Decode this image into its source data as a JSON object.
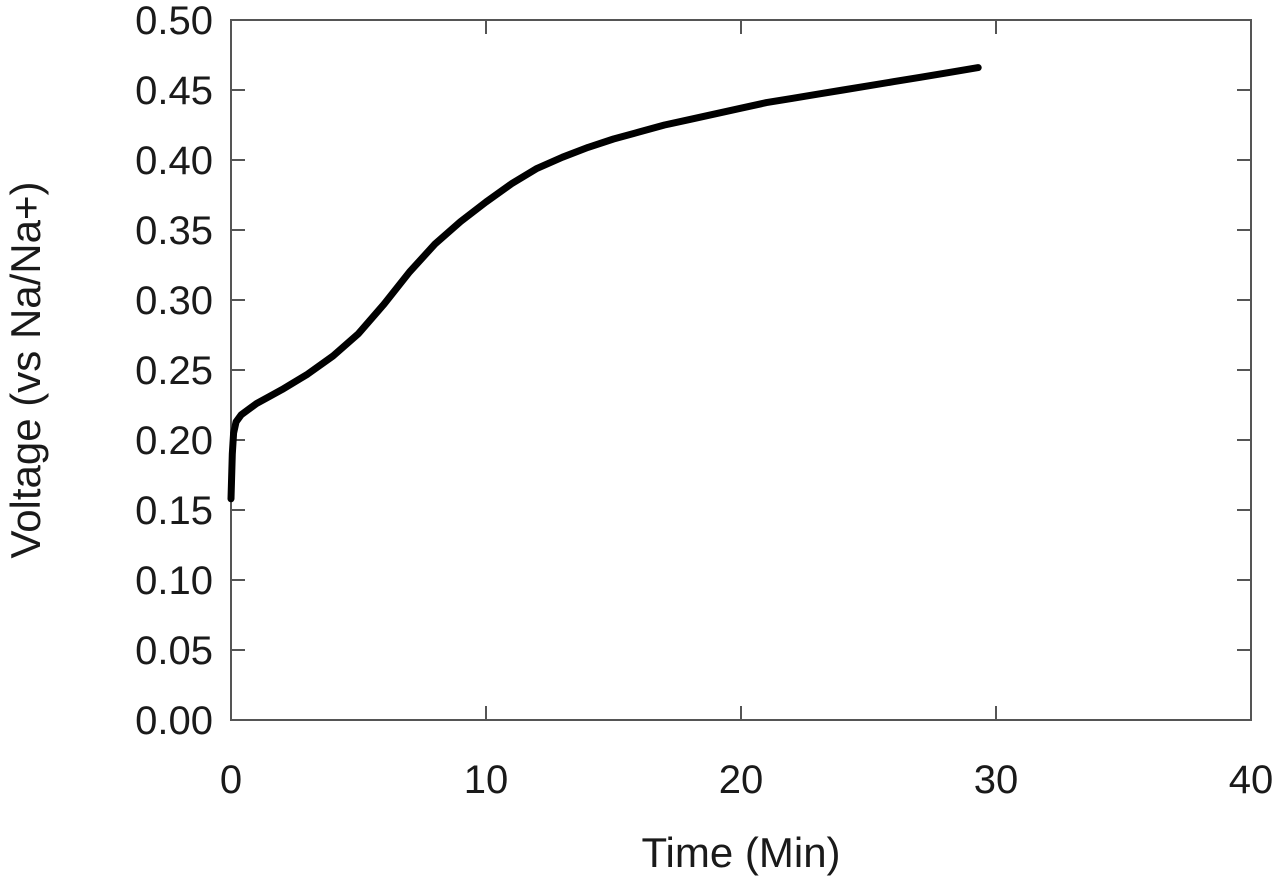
{
  "chart_data": {
    "type": "line",
    "title": "",
    "xlabel": "Time (Min)",
    "ylabel": "Voltage (vs Na/Na+)",
    "xlim": [
      0,
      40
    ],
    "ylim": [
      0,
      0.5
    ],
    "xticks": [
      0,
      10,
      20,
      30,
      40
    ],
    "xtick_labels": [
      "0",
      "10",
      "20",
      "30",
      "40"
    ],
    "yticks": [
      0,
      0.05,
      0.1,
      0.15,
      0.2,
      0.25,
      0.3,
      0.35,
      0.4,
      0.45,
      0.5
    ],
    "ytick_labels": [
      "0.00",
      "0.05",
      "0.10",
      "0.15",
      "0.20",
      "0.25",
      "0.30",
      "0.35",
      "0.40",
      "0.45",
      "0.50"
    ],
    "grid": false,
    "legend": "none",
    "line_color": "#000000",
    "series": [
      {
        "x": [
          0,
          0.05,
          0.1,
          0.2,
          0.4,
          0.7,
          1,
          1.5,
          2,
          3,
          4,
          5,
          6,
          7,
          8,
          9,
          10,
          11,
          12,
          13,
          14,
          15,
          16,
          17,
          18,
          19,
          20,
          21,
          22,
          23,
          24,
          25,
          26,
          27,
          28,
          29.3
        ],
        "y": [
          0.158,
          0.19,
          0.205,
          0.213,
          0.218,
          0.222,
          0.226,
          0.231,
          0.236,
          0.247,
          0.26,
          0.276,
          0.297,
          0.32,
          0.34,
          0.356,
          0.37,
          0.383,
          0.394,
          0.402,
          0.409,
          0.415,
          0.42,
          0.425,
          0.429,
          0.433,
          0.437,
          0.441,
          0.444,
          0.447,
          0.45,
          0.453,
          0.456,
          0.459,
          0.462,
          0.466
        ]
      }
    ]
  }
}
